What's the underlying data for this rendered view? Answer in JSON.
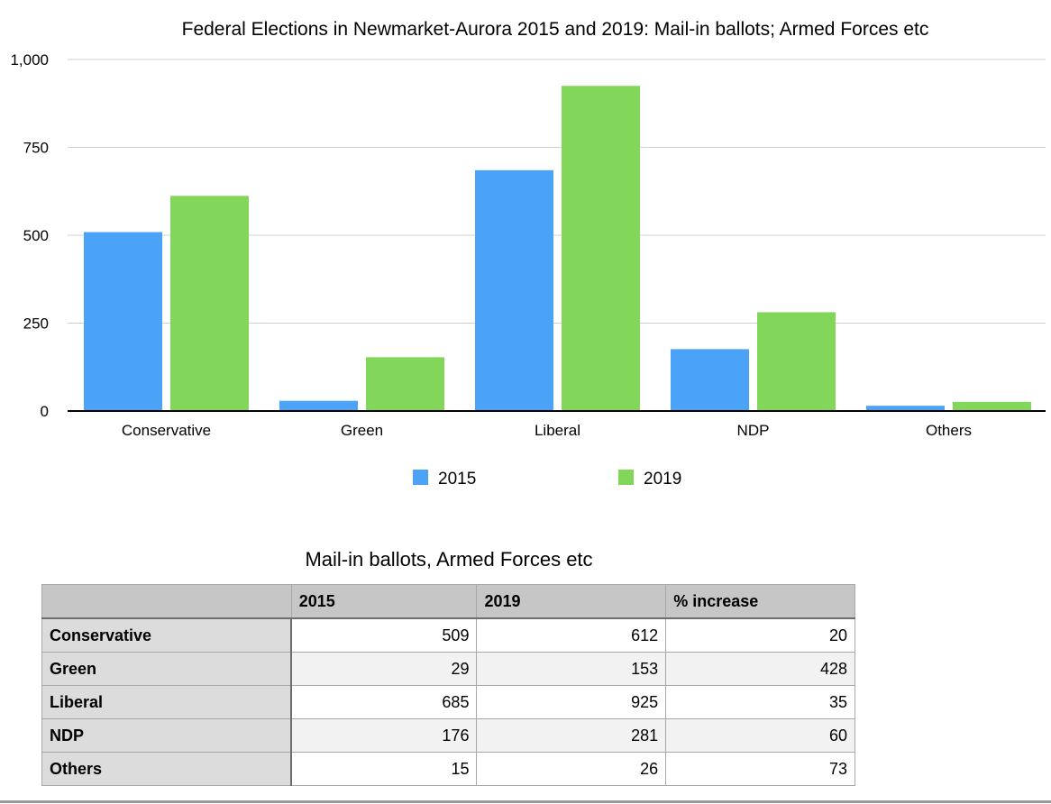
{
  "chart_data": {
    "type": "bar",
    "title": "Federal Elections in Newmarket-Aurora 2015 and 2019: Mail-in ballots; Armed Forces etc",
    "categories": [
      "Conservative",
      "Green",
      "Liberal",
      "NDP",
      "Others"
    ],
    "series": [
      {
        "name": "2015",
        "values": [
          509,
          29,
          685,
          176,
          15
        ],
        "color": "#4aa3f6"
      },
      {
        "name": "2019",
        "values": [
          612,
          153,
          925,
          281,
          26
        ],
        "color": "#82d65a"
      }
    ],
    "yticks": [
      "0",
      "250",
      "500",
      "750",
      "1,000"
    ],
    "ylim": [
      0,
      1000
    ],
    "grid": true,
    "legend_position": "bottom"
  },
  "table": {
    "title": "Mail-in ballots, Armed Forces etc",
    "columns": [
      "",
      "2015",
      "2019",
      "% increase"
    ],
    "rows": [
      {
        "label": "Conservative",
        "cells": [
          "509",
          "612",
          "20"
        ]
      },
      {
        "label": "Green",
        "cells": [
          "29",
          "153",
          "428"
        ]
      },
      {
        "label": "Liberal",
        "cells": [
          "685",
          "925",
          "35"
        ]
      },
      {
        "label": "NDP",
        "cells": [
          "176",
          "281",
          "60"
        ]
      },
      {
        "label": "Others",
        "cells": [
          "15",
          "26",
          "73"
        ]
      }
    ]
  }
}
